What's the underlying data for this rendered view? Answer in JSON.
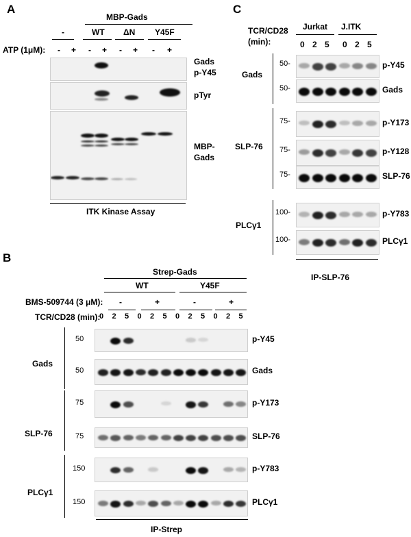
{
  "panelA": {
    "letter": "A",
    "construct_header": "MBP-Gads",
    "groups": [
      "-",
      "WT",
      "ΔN",
      "Y45F"
    ],
    "treatment_label": "ATP (1μM):",
    "lane_signs": [
      "-",
      "+",
      "-",
      "+",
      "-",
      "+",
      "-",
      "+"
    ],
    "blot_labels": [
      "Gads\np-Y45",
      "pTyr",
      "MBP-\nGads"
    ],
    "footer": "ITK Kinase Assay"
  },
  "panelB": {
    "letter": "B",
    "construct_header": "Strep-Gads",
    "groups": [
      "WT",
      "Y45F"
    ],
    "inhibitor_label": "BMS-509744 (3 μM):",
    "inhibitor_signs": [
      "-",
      "+",
      "-",
      "+"
    ],
    "time_label": "TCR/CD28 (min):",
    "times": [
      "0",
      "2",
      "5",
      "0",
      "2",
      "5",
      "0",
      "2",
      "5",
      "0",
      "2",
      "5"
    ],
    "protein_groups": [
      "Gads",
      "SLP-76",
      "PLCγ1"
    ],
    "blots": [
      {
        "mw": "50",
        "label": "p-Y45"
      },
      {
        "mw": "50",
        "label": "Gads"
      },
      {
        "mw": "75",
        "label": "p-Y173"
      },
      {
        "mw": "75",
        "label": "SLP-76"
      },
      {
        "mw": "150",
        "label": "p-Y783"
      },
      {
        "mw": "150",
        "label": "PLCγ1"
      }
    ],
    "footer": "IP-Strep"
  },
  "panelC": {
    "letter": "C",
    "time_label": "TCR/CD28\n(min):",
    "cell_lines": [
      "Jurkat",
      "J.ITK"
    ],
    "times": [
      "0",
      "2",
      "5",
      "0",
      "2",
      "5"
    ],
    "protein_groups": [
      "Gads",
      "SLP-76",
      "PLCγ1"
    ],
    "blots": [
      {
        "mw": "50-",
        "label": "p-Y45"
      },
      {
        "mw": "50-",
        "label": "Gads"
      },
      {
        "mw": "75-",
        "label": "p-Y173"
      },
      {
        "mw": "75-",
        "label": "p-Y128"
      },
      {
        "mw": "75-",
        "label": "SLP-76"
      },
      {
        "mw": "100-",
        "label": "p-Y783"
      },
      {
        "mw": "100-",
        "label": "PLCγ1"
      }
    ],
    "footer": "IP-SLP-76"
  }
}
